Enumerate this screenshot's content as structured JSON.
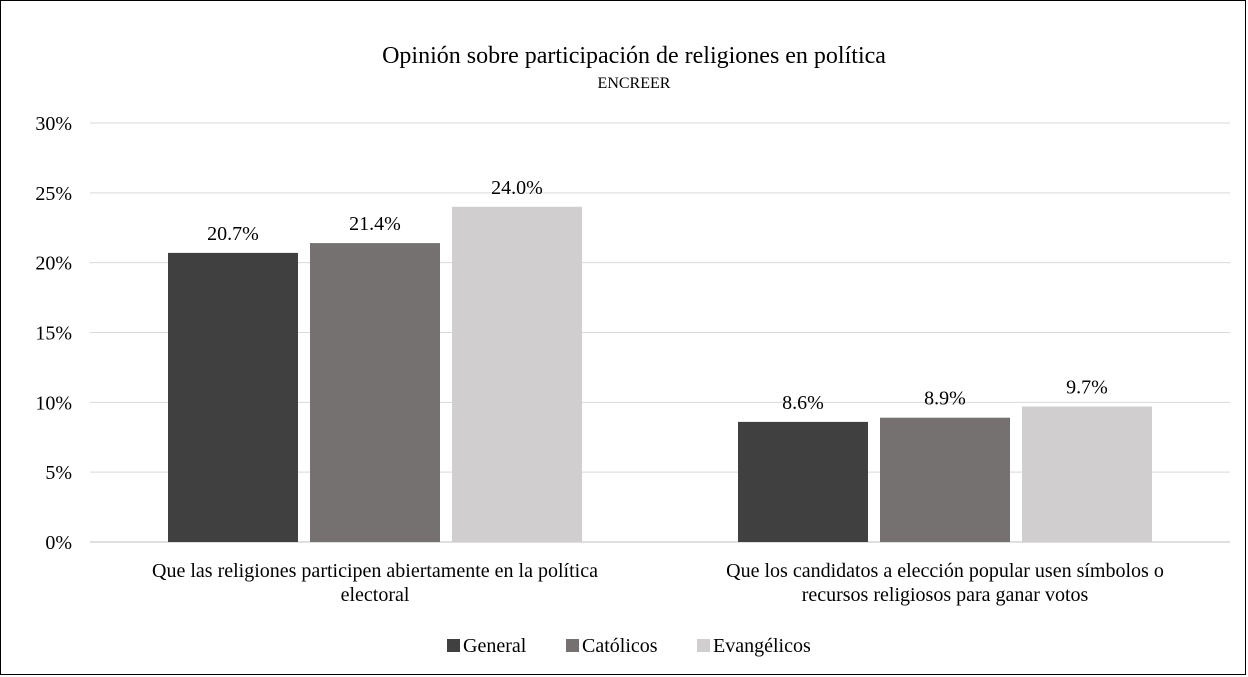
{
  "chart_data": {
    "type": "bar",
    "title": "Opinión sobre participación de religiones en política",
    "subtitle": "ENCREER",
    "xlabel": "",
    "ylabel": "",
    "ylim": [
      0,
      30
    ],
    "yticks": [
      "0%",
      "5%",
      "10%",
      "15%",
      "20%",
      "25%",
      "30%"
    ],
    "grid": true,
    "legend_position": "bottom",
    "categories": [
      [
        "Que las religiones participen abiertamente en la política",
        "electoral"
      ],
      [
        "Que los candidatos a elección popular usen símbolos o",
        "recursos religiosos para ganar votos"
      ]
    ],
    "series": [
      {
        "name": "General",
        "color": "#404040",
        "values": [
          20.7,
          8.6
        ],
        "labels": [
          "20.7%",
          "8.6%"
        ]
      },
      {
        "name": "Católicos",
        "color": "#767171",
        "values": [
          21.4,
          8.9
        ],
        "labels": [
          "21.4%",
          "8.9%"
        ]
      },
      {
        "name": "Evangélicos",
        "color": "#d0cece",
        "values": [
          24.0,
          9.7
        ],
        "labels": [
          "24.0%",
          "9.7%"
        ]
      }
    ]
  }
}
